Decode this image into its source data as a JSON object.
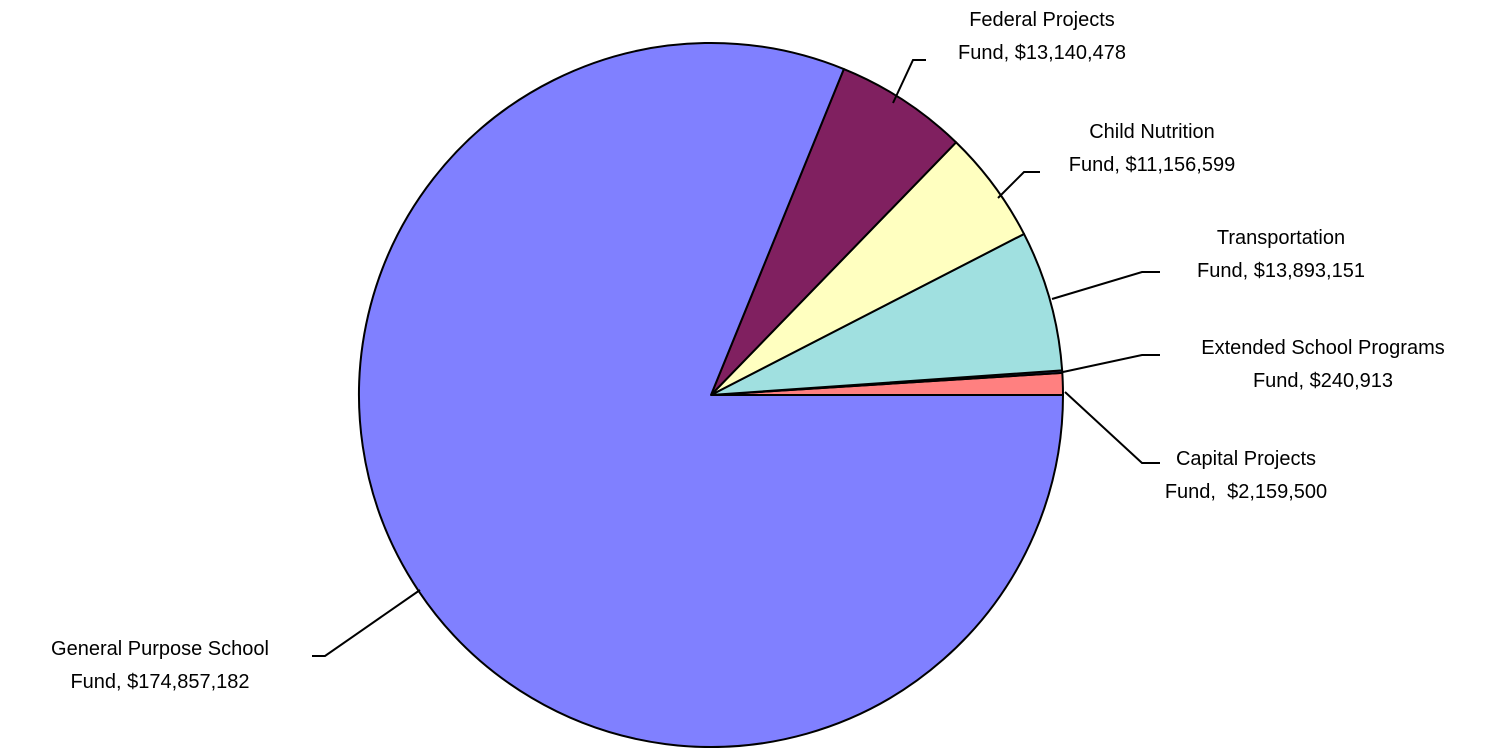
{
  "chart_data": {
    "type": "pie",
    "title": "",
    "slices": [
      {
        "label_line1": "Capital Projects",
        "label_line2": "Fund,  $2,159,500",
        "value": 2159500,
        "color": "#ff8080"
      },
      {
        "label_line1": "Extended School Programs",
        "label_line2": "Fund, $240,913",
        "value": 240913,
        "color": "#1f3b6f"
      },
      {
        "label_line1": "Transportation",
        "label_line2": "Fund, $13,893,151",
        "value": 13893151,
        "color": "#a0e0e0"
      },
      {
        "label_line1": "Child Nutrition",
        "label_line2": "Fund, $11,156,599",
        "value": 11156599,
        "color": "#ffffc0"
      },
      {
        "label_line1": "Federal Projects",
        "label_line2": "Fund, $13,140,478",
        "value": 13140478,
        "color": "#802060"
      },
      {
        "label_line1": "General Purpose School",
        "label_line2": "Fund, $174,857,182",
        "value": 174857182,
        "color": "#8080ff"
      }
    ]
  }
}
